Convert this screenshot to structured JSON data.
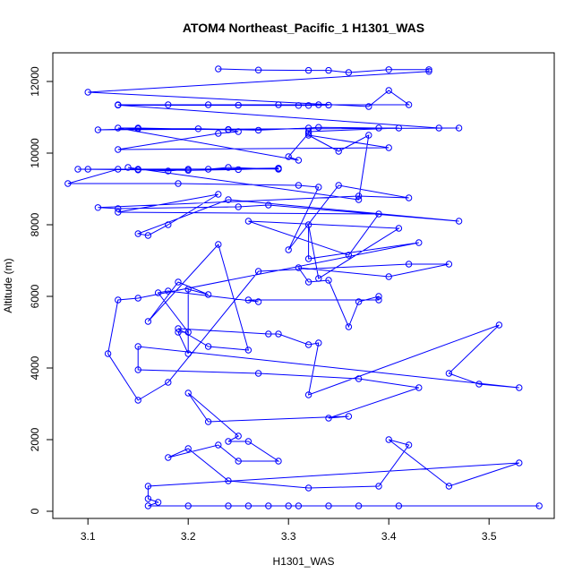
{
  "chart_data": {
    "type": "line",
    "title": "ATOM4 Northeast_Pacific_1 H1301_WAS",
    "xlabel": "H1301_WAS",
    "ylabel": "Altitude (m)",
    "xlim": [
      3.065,
      3.565
    ],
    "ylim": [
      -200,
      12800
    ],
    "x_ticks": [
      "3.1",
      "3.2",
      "3.3",
      "3.4",
      "3.5"
    ],
    "y_ticks": [
      "0",
      "2000",
      "4000",
      "6000",
      "8000",
      "10000",
      "12000"
    ],
    "color": "#0000ff",
    "series": [
      {
        "points": [
          [
            3.23,
            12350
          ],
          [
            3.27,
            12320
          ],
          [
            3.32,
            12310
          ],
          [
            3.34,
            12310
          ],
          [
            3.36,
            12250
          ],
          [
            3.4,
            12330
          ],
          [
            3.44,
            12330
          ],
          [
            3.44,
            12280
          ],
          [
            3.1,
            11700
          ],
          [
            3.38,
            11300
          ],
          [
            3.4,
            11750
          ],
          [
            3.42,
            11350
          ],
          [
            3.13,
            11350
          ],
          [
            3.18,
            11350
          ],
          [
            3.22,
            11350
          ],
          [
            3.25,
            11340
          ],
          [
            3.29,
            11350
          ],
          [
            3.31,
            11330
          ],
          [
            3.33,
            11350
          ],
          [
            3.34,
            11340
          ],
          [
            3.32,
            11330
          ],
          [
            3.13,
            11340
          ],
          [
            3.45,
            10700
          ],
          [
            3.47,
            10700
          ],
          [
            3.11,
            10650
          ],
          [
            3.15,
            10680
          ],
          [
            3.21,
            10680
          ],
          [
            3.24,
            10660
          ],
          [
            3.27,
            10640
          ],
          [
            3.32,
            10700
          ],
          [
            3.33,
            10720
          ],
          [
            3.39,
            10700
          ],
          [
            3.41,
            10700
          ],
          [
            3.32,
            10600
          ],
          [
            3.32,
            10550
          ],
          [
            3.3,
            9900
          ],
          [
            3.31,
            9800
          ],
          [
            3.13,
            10700
          ],
          [
            3.15,
            10700
          ],
          [
            3.24,
            10650
          ],
          [
            3.25,
            10600
          ],
          [
            3.23,
            10550
          ],
          [
            3.13,
            10100
          ],
          [
            3.4,
            10150
          ],
          [
            3.32,
            10500
          ],
          [
            3.35,
            10050
          ],
          [
            3.38,
            10500
          ],
          [
            3.37,
            8700
          ],
          [
            3.14,
            9600
          ],
          [
            3.15,
            9550
          ],
          [
            3.18,
            9500
          ],
          [
            3.2,
            9550
          ],
          [
            3.22,
            9550
          ],
          [
            3.24,
            9600
          ],
          [
            3.29,
            9550
          ],
          [
            3.29,
            9560
          ],
          [
            3.1,
            9550
          ],
          [
            3.09,
            9550
          ],
          [
            3.2,
            9520
          ],
          [
            3.25,
            9540
          ],
          [
            3.29,
            9580
          ],
          [
            3.15,
            9530
          ],
          [
            3.13,
            9550
          ],
          [
            3.08,
            9150
          ],
          [
            3.19,
            9150
          ],
          [
            3.31,
            9100
          ],
          [
            3.33,
            9050
          ],
          [
            3.3,
            7300
          ],
          [
            3.35,
            9100
          ],
          [
            3.42,
            8750
          ],
          [
            3.37,
            8800
          ],
          [
            3.11,
            8480
          ],
          [
            3.13,
            8450
          ],
          [
            3.25,
            8500
          ],
          [
            3.28,
            8550
          ],
          [
            3.47,
            8100
          ],
          [
            3.24,
            8700
          ],
          [
            3.15,
            7750
          ],
          [
            3.16,
            7700
          ],
          [
            3.18,
            8000
          ],
          [
            3.23,
            8850
          ],
          [
            3.13,
            8350
          ],
          [
            3.39,
            8300
          ],
          [
            3.36,
            7150
          ],
          [
            3.26,
            8100
          ],
          [
            3.41,
            7900
          ],
          [
            3.33,
            6500
          ],
          [
            3.32,
            8000
          ],
          [
            3.32,
            7050
          ],
          [
            3.43,
            7500
          ],
          [
            3.15,
            5950
          ],
          [
            3.13,
            5900
          ],
          [
            3.12,
            4400
          ],
          [
            3.15,
            3100
          ],
          [
            3.18,
            3600
          ],
          [
            3.27,
            6700
          ],
          [
            3.42,
            6900
          ],
          [
            3.46,
            6900
          ],
          [
            3.4,
            6550
          ],
          [
            3.31,
            6800
          ],
          [
            3.32,
            6400
          ],
          [
            3.34,
            6450
          ],
          [
            3.36,
            5150
          ],
          [
            3.37,
            5850
          ],
          [
            3.39,
            6000
          ],
          [
            3.39,
            5900
          ],
          [
            3.26,
            5900
          ],
          [
            3.27,
            5850
          ],
          [
            3.18,
            6150
          ],
          [
            3.17,
            6100
          ],
          [
            3.2,
            5000
          ],
          [
            3.19,
            5000
          ],
          [
            3.2,
            4400
          ],
          [
            3.2,
            6200
          ],
          [
            3.22,
            6050
          ],
          [
            3.19,
            6400
          ],
          [
            3.16,
            5300
          ],
          [
            3.23,
            7450
          ],
          [
            3.26,
            4500
          ],
          [
            3.22,
            4600
          ],
          [
            3.19,
            5100
          ],
          [
            3.28,
            4950
          ],
          [
            3.29,
            4950
          ],
          [
            3.32,
            4650
          ],
          [
            3.33,
            4700
          ],
          [
            3.32,
            3250
          ],
          [
            3.51,
            5200
          ],
          [
            3.46,
            3850
          ],
          [
            3.49,
            3550
          ],
          [
            3.53,
            3450
          ],
          [
            3.15,
            4600
          ],
          [
            3.15,
            3950
          ],
          [
            3.27,
            3850
          ],
          [
            3.37,
            3700
          ],
          [
            3.43,
            3450
          ],
          [
            3.34,
            2600
          ],
          [
            3.36,
            2650
          ],
          [
            3.22,
            2500
          ],
          [
            3.2,
            3300
          ],
          [
            3.25,
            2100
          ],
          [
            3.24,
            1950
          ],
          [
            3.26,
            1950
          ],
          [
            3.29,
            1400
          ],
          [
            3.25,
            1400
          ],
          [
            3.23,
            1850
          ],
          [
            3.18,
            1500
          ],
          [
            3.2,
            1750
          ],
          [
            3.24,
            850
          ],
          [
            3.32,
            650
          ],
          [
            3.39,
            700
          ],
          [
            3.42,
            1850
          ],
          [
            3.4,
            2000
          ],
          [
            3.46,
            700
          ],
          [
            3.53,
            1350
          ],
          [
            3.16,
            700
          ],
          [
            3.16,
            350
          ],
          [
            3.17,
            250
          ],
          [
            3.16,
            150
          ],
          [
            3.2,
            150
          ],
          [
            3.24,
            150
          ],
          [
            3.26,
            150
          ],
          [
            3.28,
            150
          ],
          [
            3.3,
            150
          ],
          [
            3.31,
            150
          ],
          [
            3.34,
            150
          ],
          [
            3.37,
            150
          ],
          [
            3.41,
            150
          ],
          [
            3.55,
            150
          ]
        ]
      }
    ]
  }
}
